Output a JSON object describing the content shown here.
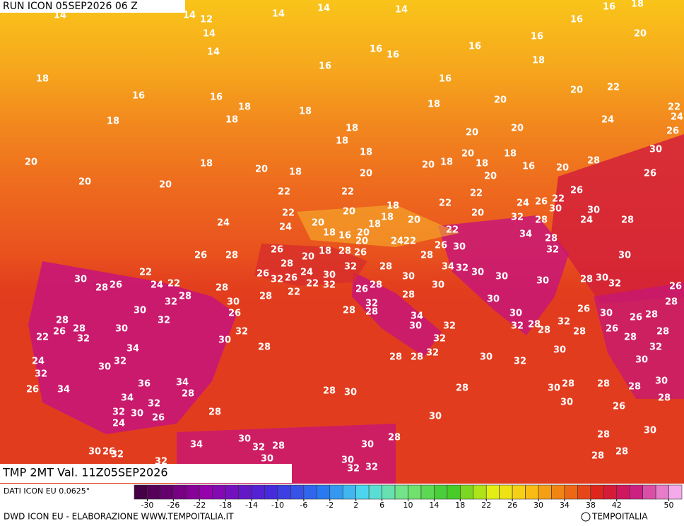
{
  "header": {
    "run": "RUN ICON 05SEP2026 06 Z",
    "field": "TMP 2MT Val. 11Z05SEP2026"
  },
  "footer": {
    "source": "DATI ICON EU 0.0625°",
    "credit": "DWD ICON EU - ELABORAZIONE WWW.TEMPOITALIA.IT",
    "brand": "TEMPOITALIA"
  },
  "colorbar": {
    "lim": [
      -32,
      52
    ],
    "ticks": [
      -30,
      -26,
      -22,
      -18,
      -14,
      -10,
      -6,
      -2,
      2,
      6,
      10,
      14,
      18,
      22,
      26,
      30,
      34,
      38,
      42,
      50
    ]
  },
  "map_labels": [
    14,
    12,
    14,
    14,
    14,
    14,
    16,
    18,
    14,
    14,
    16,
    16,
    16,
    16,
    16,
    20,
    18,
    16,
    16,
    18,
    18,
    18,
    18,
    16,
    16,
    18,
    18,
    20,
    20,
    22,
    22,
    24,
    24,
    26,
    20,
    20,
    18,
    18,
    18,
    20,
    18,
    20,
    18,
    20,
    20,
    18,
    20,
    18,
    18,
    20,
    16,
    20,
    28,
    30,
    26,
    20,
    20,
    22,
    22,
    22,
    26,
    22,
    26,
    24,
    30,
    30,
    22,
    20,
    18,
    22,
    20,
    32,
    28,
    24,
    28,
    24,
    24,
    20,
    18,
    20,
    18,
    16,
    20,
    18,
    20,
    24,
    22,
    22,
    34,
    28,
    32,
    26,
    28,
    26,
    20,
    18,
    28,
    26,
    28,
    26,
    30,
    30,
    22,
    30,
    26,
    28,
    24,
    22,
    26,
    32,
    28,
    24,
    26,
    30,
    32,
    28,
    34,
    32,
    30,
    30,
    22,
    32,
    26,
    28,
    30,
    30,
    30,
    28,
    30,
    32,
    26,
    28,
    32,
    28,
    28,
    30,
    22,
    28,
    30,
    30,
    28,
    32,
    26,
    32,
    28,
    28,
    34,
    30,
    26,
    30,
    26,
    28,
    28,
    28,
    30,
    22,
    26,
    32,
    32,
    30,
    30,
    32,
    32,
    28,
    32,
    28,
    26,
    28,
    28,
    34,
    28,
    32,
    28,
    32,
    24,
    30,
    32,
    28,
    28,
    32,
    30,
    32,
    30,
    30,
    32,
    26,
    34,
    36,
    34,
    28,
    34,
    32,
    28,
    30,
    28,
    30,
    28,
    28,
    28,
    30,
    28,
    32,
    30,
    26,
    24,
    28,
    30,
    26,
    30,
    28,
    28,
    30,
    34,
    30,
    32,
    28,
    30,
    30,
    26,
    32,
    32,
    30,
    28,
    28,
    30,
    32,
    32
  ]
}
